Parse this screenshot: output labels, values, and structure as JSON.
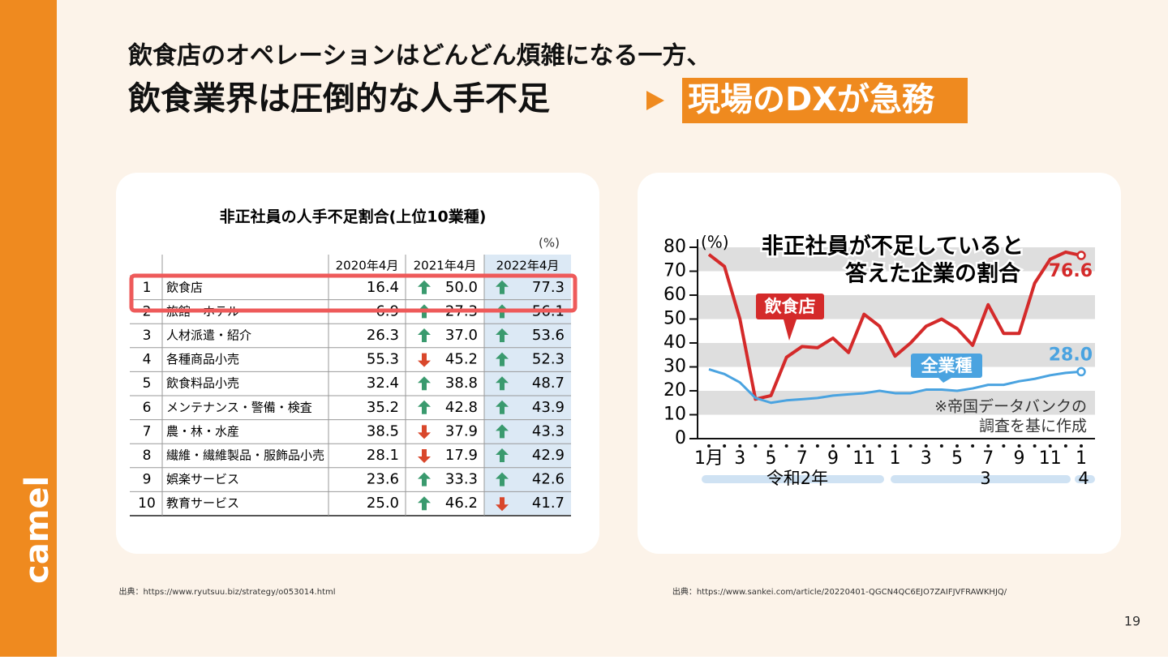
{
  "header": {
    "line1": "飲食店のオペレーションはどんどん煩雑になる一方、",
    "line2": "飲食業界は圧倒的な人手不足",
    "highlight": "現場のDXが急務"
  },
  "logo": "camel",
  "table": {
    "title": "非正社員の人手不足割合(上位10業種)",
    "unit": "(%)",
    "columns": [
      "2020年4月",
      "2021年4月",
      "2022年4月"
    ],
    "rows": [
      [
        "1",
        "飲食店",
        "16.4",
        "50.0",
        "77.3"
      ],
      [
        "2",
        "旅館・ホテル",
        "6.9",
        "27.3",
        "56.1"
      ],
      [
        "3",
        "人材派遣・紹介",
        "26.3",
        "37.0",
        "53.6"
      ],
      [
        "4",
        "各種商品小売",
        "55.3",
        "45.2",
        "52.3"
      ],
      [
        "5",
        "飲食料品小売",
        "32.4",
        "38.8",
        "48.7"
      ],
      [
        "6",
        "メンテナンス・警備・検査",
        "35.2",
        "42.8",
        "43.9"
      ],
      [
        "7",
        "農・林・水産",
        "38.5",
        "37.9",
        "43.3"
      ],
      [
        "8",
        "繊維・繊維製品・服飾品小売",
        "28.1",
        "17.9",
        "42.9"
      ],
      [
        "9",
        "娯楽サービス",
        "23.6",
        "33.3",
        "42.6"
      ],
      [
        "10",
        "教育サービス",
        "25.0",
        "46.2",
        "41.7"
      ]
    ]
  },
  "chart_data": {
    "type": "line",
    "title": [
      "非正社員が不足していると",
      "答えた企業の割合"
    ],
    "y_unit": "(%)",
    "categories": [
      "1月",
      null,
      "3",
      null,
      "5",
      null,
      "7",
      null,
      "9",
      null,
      "11",
      null,
      "1",
      null,
      "3",
      null,
      "5",
      null,
      "7",
      null,
      "9",
      null,
      "11",
      null,
      "1"
    ],
    "eras": [
      "令和2年",
      "3",
      "4"
    ],
    "ylim": [
      0,
      80
    ],
    "yticks": [
      0,
      10,
      20,
      30,
      40,
      50,
      60,
      70,
      80
    ],
    "grid": "bands",
    "series": [
      {
        "name": "飲食店",
        "color": "#d42a2a",
        "values": [
          77,
          72,
          50,
          16.5,
          18,
          34,
          38.5,
          38,
          42,
          36,
          52,
          47,
          34.5,
          40,
          47,
          50,
          46,
          39,
          56,
          44,
          44,
          65,
          75,
          78,
          76.6
        ],
        "value_labels": [
          null,
          null,
          null,
          null,
          null,
          null,
          null,
          null,
          null,
          null,
          null,
          null,
          null,
          null,
          null,
          null,
          null,
          null,
          null,
          null,
          null,
          null,
          null,
          null,
          "76.6"
        ]
      },
      {
        "name": "全業種",
        "color": "#4aa3e0",
        "values": [
          29,
          27,
          23.5,
          17,
          15,
          16,
          16.5,
          17,
          18,
          18.5,
          19,
          20,
          19,
          19,
          20.5,
          20.5,
          20,
          21,
          22.5,
          22.5,
          24,
          25,
          26.5,
          27.5,
          28
        ],
        "value_labels": [
          null,
          null,
          null,
          null,
          null,
          null,
          null,
          null,
          null,
          null,
          null,
          null,
          null,
          null,
          null,
          null,
          null,
          null,
          null,
          null,
          null,
          null,
          null,
          null,
          "28.0"
        ]
      }
    ],
    "note": [
      "※帝国データバンクの",
      "調査を基に作成"
    ]
  },
  "sources": [
    "出典：https://www.ryutsuu.biz/strategy/o053014.html",
    "出典：https://www.sankei.com/article/20220401-QGCN4QC6EJO7ZAIFJVFRAWKHJQ/"
  ],
  "page_number": "19"
}
